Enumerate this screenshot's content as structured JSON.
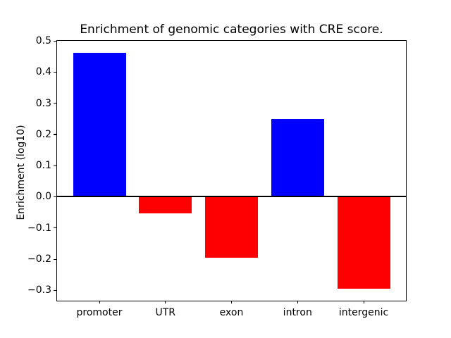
{
  "figure": {
    "background_color": "#ffffff",
    "axis_color": "#000000"
  },
  "chart_data": {
    "type": "bar",
    "title": "Enrichment of genomic categories with CRE score.",
    "xlabel": "",
    "ylabel": "Enrichment (log10)",
    "categories": [
      "promoter",
      "UTR",
      "exon",
      "intron",
      "intergenic"
    ],
    "values": [
      0.462,
      -0.053,
      -0.196,
      0.25,
      -0.295
    ],
    "bar_colors": [
      "#0000ff",
      "#ff0000",
      "#ff0000",
      "#0000ff",
      "#ff0000"
    ],
    "positive_color": "#0000ff",
    "negative_color": "#ff0000",
    "bar_width": 0.8,
    "ylim": [
      -0.333,
      0.5
    ],
    "xlim": [
      -0.64,
      4.64
    ],
    "yticks": {
      "values": [
        0.5,
        0.4,
        0.3,
        0.2,
        0.1,
        0.0,
        -0.1,
        -0.2,
        -0.3
      ],
      "labels": [
        "0.5",
        "0.4",
        "0.3",
        "0.2",
        "0.1",
        "0.0",
        "−0.1",
        "−0.2",
        "−0.3"
      ]
    },
    "zero_line": {
      "y": 0.0,
      "color": "#000000"
    },
    "grid": false,
    "legend": "none"
  }
}
